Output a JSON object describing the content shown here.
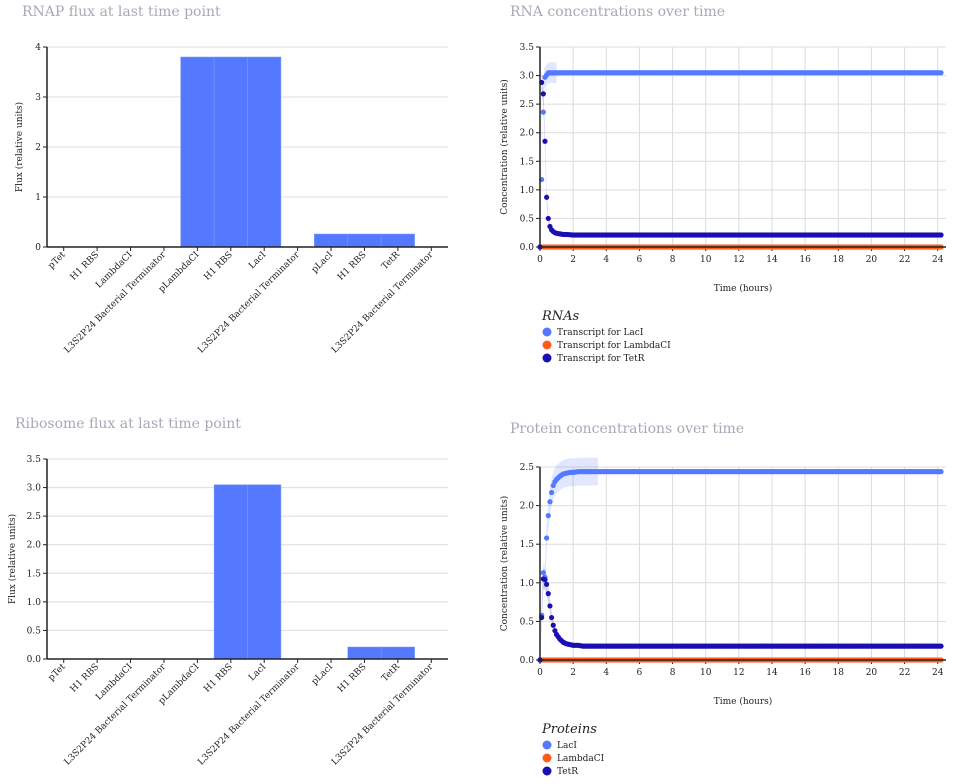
{
  "charts": {
    "rnap": {
      "title": "RNAP flux at last time point",
      "ylabel": "Flux (relative units)"
    },
    "ribosome": {
      "title": "Ribosome flux at last time point",
      "ylabel": "Flux (relative units)"
    },
    "rna": {
      "title": "RNA concentrations over time",
      "xlabel": "Time (hours)",
      "ylabel": "Concentration (relative units)",
      "legend_title": "RNAs"
    },
    "protein": {
      "title": "Protein concentrations over time",
      "xlabel": "Time (hours)",
      "ylabel": "Concentration (relative units)",
      "legend_title": "Proteins"
    }
  },
  "colors": {
    "bar": "#5479ff",
    "lacI": "#5479ff",
    "lambdaCI": "#ff5e1a",
    "tetR": "#1a0fb2"
  },
  "chart_data": [
    {
      "id": "rnap",
      "type": "bar",
      "title": "RNAP flux at last time point",
      "ylabel": "Flux (relative units)",
      "categories": [
        "pTet",
        "H1 RBS",
        "LambdaCI",
        "L3S2P24 Bacterial Terminator",
        "pLambdaCI",
        "H1 RBS",
        "LacI",
        "L3S2P24 Bacterial Terminator",
        "pLacI",
        "H1 RBS",
        "TetR",
        "L3S2P24 Bacterial Terminator"
      ],
      "values": [
        0,
        0,
        0,
        0,
        3.8,
        3.8,
        3.8,
        0,
        0.26,
        0.26,
        0.26,
        0
      ],
      "ylim": [
        0,
        4
      ],
      "yticks": [
        0,
        1,
        2,
        3,
        4
      ],
      "grid": true
    },
    {
      "id": "ribosome",
      "type": "bar",
      "title": "Ribosome flux at last time point",
      "ylabel": "Flux (relative units)",
      "categories": [
        "pTet",
        "H1 RBS",
        "LambdaCI",
        "L3S2P24 Bacterial Terminator",
        "pLambdaCI",
        "H1 RBS",
        "LacI",
        "L3S2P24 Bacterial Terminator",
        "pLacI",
        "H1 RBS",
        "TetR",
        "L3S2P24 Bacterial Terminator"
      ],
      "values": [
        0,
        0,
        0,
        0,
        0,
        3.05,
        3.05,
        0,
        0,
        0.21,
        0.21,
        0
      ],
      "ylim": [
        0,
        3.5
      ],
      "yticks": [
        0,
        0.5,
        1.0,
        1.5,
        2.0,
        2.5,
        3.0,
        3.5
      ],
      "grid": true
    },
    {
      "id": "rna",
      "type": "scatter",
      "title": "RNA concentrations over time",
      "xlabel": "Time (hours)",
      "ylabel": "Concentration (relative units)",
      "xlim": [
        0,
        24.5
      ],
      "ylim": [
        0,
        3.5
      ],
      "xticks": [
        0,
        2,
        4,
        6,
        8,
        10,
        12,
        14,
        16,
        18,
        20,
        22,
        24
      ],
      "yticks": [
        0,
        0.5,
        1.0,
        1.5,
        2.0,
        2.5,
        3.0,
        3.5
      ],
      "legend_title": "RNAs",
      "legend_position": "bottom-left",
      "series": [
        {
          "name": "Transcript for LacI",
          "color": "#5479ff",
          "x": [
            0,
            0.25,
            0.5,
            1,
            24.25
          ],
          "y": [
            0,
            2.95,
            3.05,
            3.05,
            3.05
          ]
        },
        {
          "name": "Transcript for LambdaCI",
          "color": "#ff5e1a",
          "x": [
            0,
            24.25
          ],
          "y": [
            0,
            0
          ]
        },
        {
          "name": "Transcript for TetR",
          "color": "#1a0fb2",
          "x": [
            0,
            0.1,
            0.2,
            0.3,
            0.4,
            0.5,
            0.6,
            0.7,
            0.8,
            0.9,
            1.0,
            1.2,
            1.4,
            1.6,
            2.0,
            24.25
          ],
          "y": [
            0,
            2.88,
            2.68,
            1.85,
            0.87,
            0.5,
            0.36,
            0.3,
            0.27,
            0.25,
            0.24,
            0.23,
            0.22,
            0.22,
            0.21,
            0.21
          ]
        }
      ]
    },
    {
      "id": "protein",
      "type": "scatter",
      "title": "Protein concentrations over time",
      "xlabel": "Time (hours)",
      "ylabel": "Concentration (relative units)",
      "xlim": [
        0,
        24.5
      ],
      "ylim": [
        0,
        2.5
      ],
      "xticks": [
        0,
        2,
        4,
        6,
        8,
        10,
        12,
        14,
        16,
        18,
        20,
        22,
        24
      ],
      "yticks": [
        0,
        0.5,
        1.0,
        1.5,
        2.0,
        2.5
      ],
      "legend_title": "Proteins",
      "legend_position": "bottom-left",
      "series": [
        {
          "name": "LacI",
          "color": "#5479ff",
          "x": [
            0,
            0.1,
            0.2,
            0.3,
            0.4,
            0.5,
            0.6,
            0.7,
            0.8,
            0.9,
            1.0,
            1.2,
            1.4,
            1.6,
            1.8,
            2.0,
            2.3,
            2.6,
            3.0,
            3.5,
            24.25
          ],
          "y": [
            0,
            0.58,
            1.13,
            1.07,
            1.58,
            1.87,
            2.05,
            2.17,
            2.26,
            2.31,
            2.34,
            2.38,
            2.41,
            2.42,
            2.43,
            2.43,
            2.44,
            2.44,
            2.44,
            2.44,
            2.44
          ]
        },
        {
          "name": "LambdaCI",
          "color": "#ff5e1a",
          "x": [
            0,
            24.25
          ],
          "y": [
            0,
            0
          ]
        },
        {
          "name": "TetR",
          "color": "#1a0fb2",
          "x": [
            0,
            0.1,
            0.2,
            0.3,
            0.4,
            0.5,
            0.6,
            0.7,
            0.8,
            0.9,
            1.0,
            1.1,
            1.2,
            1.3,
            1.4,
            1.6,
            1.8,
            2.0,
            2.3,
            2.6,
            3.0,
            24.25
          ],
          "y": [
            0,
            0.55,
            1.05,
            1.04,
            0.98,
            0.86,
            0.7,
            0.55,
            0.45,
            0.38,
            0.33,
            0.3,
            0.27,
            0.25,
            0.23,
            0.21,
            0.2,
            0.19,
            0.19,
            0.18,
            0.18,
            0.18
          ]
        }
      ]
    }
  ]
}
